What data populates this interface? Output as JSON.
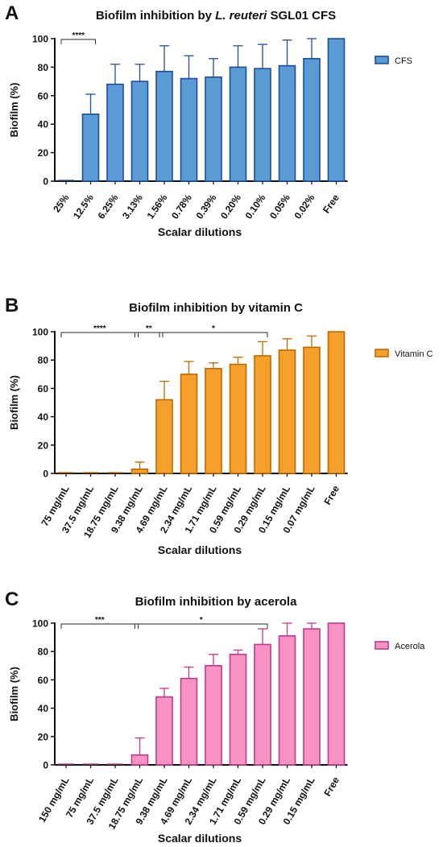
{
  "chart_data": [
    {
      "type": "bar",
      "panel_letter": "A",
      "title": "Biofilm inhibition by L. reuteri  SGL01 CFS",
      "title_parts": [
        {
          "text": "Biofilm inhibition by ",
          "italic": false
        },
        {
          "text": "L. reuteri",
          "italic": true
        },
        {
          "text": "  SGL01 CFS",
          "italic": false
        }
      ],
      "xlabel": "Scalar dilutions",
      "ylabel": "Biofilm (%)",
      "ylim": [
        0,
        100
      ],
      "yticks": [
        0,
        20,
        40,
        60,
        80,
        100
      ],
      "categories": [
        "25%",
        "12.5%",
        "6.25%",
        "3.13%",
        "1.56%",
        "0.78%",
        "0.39%",
        "0.20%",
        "0.10%",
        "0.05%",
        "0.02%",
        "Free"
      ],
      "series": [
        {
          "name": "CFS",
          "values": [
            0,
            47,
            68,
            70,
            77,
            72,
            73,
            80,
            79,
            81,
            86,
            100
          ],
          "errors": [
            0,
            14,
            14,
            12,
            18,
            16,
            13,
            15,
            17,
            18,
            14,
            0
          ]
        }
      ],
      "colors": {
        "fill": "#5b9bd5",
        "stroke": "#1f4e9c"
      },
      "legend_position": "right",
      "significance": [
        {
          "label": "****",
          "from": 0,
          "to": 1
        }
      ]
    },
    {
      "type": "bar",
      "panel_letter": "B",
      "title": "Biofilm inhibition by vitamin C",
      "title_parts": [
        {
          "text": "Biofilm inhibition by vitamin C",
          "italic": false
        }
      ],
      "xlabel": "Scalar dilutions",
      "ylabel": "Biofilm (%)",
      "ylim": [
        0,
        100
      ],
      "yticks": [
        0,
        20,
        40,
        60,
        80,
        100
      ],
      "categories": [
        "75 mg/mL",
        "37.5 mg/mL",
        "18.75 mg/mL",
        "9.38 mg/mL",
        "4.69 mg/mL",
        "2.34 mg/mL",
        "1.71 mg/mL",
        "0.59 mg/mL",
        "0.29 mg/mL",
        "0.15 mg/mL",
        "0.07 mg/mL",
        "Free"
      ],
      "series": [
        {
          "name": "Vitamin C",
          "values": [
            0,
            0,
            0,
            3,
            52,
            70,
            74,
            77,
            83,
            87,
            89,
            100
          ],
          "errors": [
            0,
            0,
            0,
            5,
            13,
            9,
            4,
            5,
            10,
            8,
            8,
            0
          ]
        }
      ],
      "colors": {
        "fill": "#f5a02a",
        "stroke": "#c06a00"
      },
      "legend_position": "right",
      "significance": [
        {
          "label": "****",
          "from": 0,
          "to": 3
        },
        {
          "label": "**",
          "from": 3,
          "to": 4
        },
        {
          "label": "*",
          "from": 4,
          "to": 8
        }
      ]
    },
    {
      "type": "bar",
      "panel_letter": "C",
      "title": "Biofilm inhibition by acerola",
      "title_parts": [
        {
          "text": "Biofilm inhibition by acerola",
          "italic": false
        }
      ],
      "xlabel": "Scalar dilutions",
      "ylabel": "Biofilm (%)",
      "ylim": [
        0,
        100
      ],
      "yticks": [
        0,
        20,
        40,
        60,
        80,
        100
      ],
      "categories": [
        "150 mg/mL",
        "75 mg/mL",
        "37.5 mg/mL",
        "18.75 mg/mL",
        "9.38 mg/mL",
        "4.69 mg/mL",
        "2.34 mg/mL",
        "1.71 mg/mL",
        "0.59 mg/mL",
        "0.29 mg/mL",
        "0.15 mg/mL",
        "Free"
      ],
      "series": [
        {
          "name": "Acerola",
          "values": [
            0,
            0,
            0,
            7,
            48,
            61,
            70,
            78,
            85,
            91,
            96,
            100
          ],
          "errors": [
            0,
            0,
            0,
            12,
            6,
            8,
            8,
            3,
            11,
            9,
            4,
            0
          ]
        }
      ],
      "colors": {
        "fill": "#f993c6",
        "stroke": "#c03a8a"
      },
      "legend_position": "right",
      "significance": [
        {
          "label": "***",
          "from": 0,
          "to": 3
        },
        {
          "label": "*",
          "from": 3,
          "to": 8
        }
      ]
    }
  ]
}
